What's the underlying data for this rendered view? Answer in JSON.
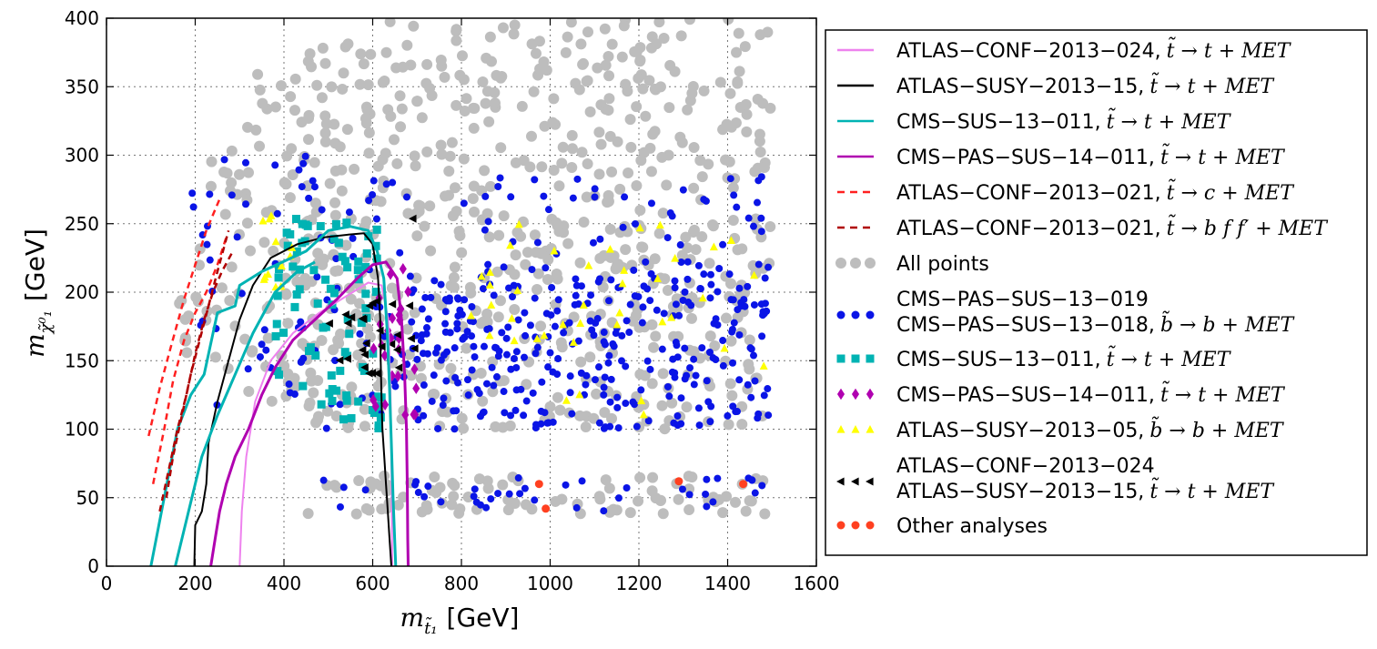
{
  "chart_data": {
    "type": "scatter",
    "title": "",
    "xlabel_sym": "m",
    "xlabel_sub": "t̃₁",
    "xlabel_unit": "[GeV]",
    "ylabel_sym": "m",
    "ylabel_sub": "χ̃⁰₁",
    "ylabel_unit": "[GeV]",
    "xlim": [
      0,
      1600
    ],
    "ylim": [
      0,
      400
    ],
    "xticks": [
      0,
      200,
      400,
      600,
      800,
      1000,
      1200,
      1400,
      1600
    ],
    "yticks": [
      0,
      50,
      100,
      150,
      200,
      250,
      300,
      350,
      400
    ],
    "grid": true,
    "legend_position": "right",
    "legend": [
      {
        "label": "ATLAS−CONF−2013−024,",
        "math": "t̃ → t + MET",
        "kind": "line",
        "color": "#ee82ee",
        "dash": "none"
      },
      {
        "label": "ATLAS−SUSY−2013−15,",
        "math": "t̃ → t + MET",
        "kind": "line",
        "color": "#000000",
        "dash": "none"
      },
      {
        "label": "CMS−SUS−13−011,",
        "math": "t̃ → t + MET",
        "kind": "line",
        "color": "#00b3b3",
        "dash": "none"
      },
      {
        "label": "CMS−PAS−SUS−14−011,",
        "math": "t̃ → t + MET",
        "kind": "line",
        "color": "#b000b0",
        "dash": "none"
      },
      {
        "label": "ATLAS−CONF−2013−021,",
        "math": "t̃ → c + MET",
        "kind": "line",
        "color": "#ff2020",
        "dash": "dashed"
      },
      {
        "label": "ATLAS−CONF−2013−021,",
        "math": "t̃ → b f f′ + MET",
        "kind": "line",
        "color": "#b00000",
        "dash": "dashed"
      },
      {
        "label": "All points",
        "math": "",
        "kind": "circle",
        "color": "#bdbdbd"
      },
      {
        "label": "CMS−PAS−SUS−13−019",
        "label2": "CMS−PAS−SUS−13−018,",
        "math": "b̃ → b + MET",
        "kind": "circle",
        "color": "#0a14e6"
      },
      {
        "label": "CMS−SUS−13−011,",
        "math": "t̃ → t + MET",
        "kind": "square",
        "color": "#00b3b3"
      },
      {
        "label": "CMS−PAS−SUS−14−011,",
        "math": "t̃ → t + MET",
        "kind": "diamond",
        "color": "#b000b0"
      },
      {
        "label": "ATLAS−SUSY−2013−05,",
        "math": "b̃ → b + MET",
        "kind": "triangle",
        "color": "#ffff00"
      },
      {
        "label": "ATLAS−CONF−2013−024",
        "label2": "ATLAS−SUSY−2013−15,",
        "math": "t̃ → t + MET",
        "kind": "lefttriangle",
        "color": "#000000"
      },
      {
        "label": "Other analyses",
        "math": "",
        "kind": "circle",
        "color": "#ff4020"
      }
    ],
    "series": [
      {
        "name": "ATLAS-CONF-2013-024 contour",
        "style": "line",
        "color": "#ee82ee",
        "width": 2,
        "points": [
          [
            300,
            0
          ],
          [
            305,
            40
          ],
          [
            315,
            80
          ],
          [
            335,
            120
          ],
          [
            370,
            150
          ],
          [
            420,
            170
          ],
          [
            480,
            185
          ],
          [
            540,
            197
          ],
          [
            590,
            207
          ],
          [
            620,
            205
          ],
          [
            635,
            180
          ],
          [
            640,
            130
          ],
          [
            642,
            80
          ],
          [
            643,
            40
          ],
          [
            644,
            0
          ]
        ]
      },
      {
        "name": "ATLAS-SUSY-2013-15 contour",
        "style": "line",
        "color": "#000000",
        "width": 2,
        "points": [
          [
            198,
            0
          ],
          [
            200,
            30
          ],
          [
            215,
            40
          ],
          [
            225,
            60
          ],
          [
            230,
            90
          ],
          [
            250,
            120
          ],
          [
            275,
            150
          ],
          [
            300,
            180
          ],
          [
            330,
            205
          ],
          [
            370,
            225
          ],
          [
            430,
            235
          ],
          [
            490,
            240
          ],
          [
            545,
            242
          ],
          [
            580,
            243
          ],
          [
            600,
            235
          ],
          [
            612,
            210
          ],
          [
            617,
            180
          ],
          [
            618,
            150
          ],
          [
            620,
            120
          ],
          [
            622,
            100
          ],
          [
            626,
            80
          ],
          [
            630,
            60
          ],
          [
            634,
            40
          ],
          [
            638,
            20
          ],
          [
            642,
            0
          ]
        ]
      },
      {
        "name": "CMS-SUS-13-011 outer contour",
        "style": "line",
        "color": "#00b3b3",
        "width": 3,
        "points": [
          [
            100,
            0
          ],
          [
            130,
            50
          ],
          [
            160,
            100
          ],
          [
            190,
            125
          ],
          [
            220,
            140
          ],
          [
            250,
            185
          ],
          [
            290,
            190
          ],
          [
            300,
            205
          ],
          [
            350,
            215
          ],
          [
            450,
            230
          ],
          [
            500,
            245
          ],
          [
            550,
            248
          ],
          [
            590,
            245
          ],
          [
            610,
            230
          ],
          [
            625,
            210
          ],
          [
            633,
            170
          ],
          [
            638,
            130
          ],
          [
            642,
            90
          ],
          [
            646,
            50
          ],
          [
            652,
            0
          ]
        ]
      },
      {
        "name": "CMS-SUS-13-011 inner contour",
        "style": "line",
        "color": "#00b3b3",
        "width": 3,
        "points": [
          [
            155,
            0
          ],
          [
            185,
            40
          ],
          [
            215,
            80
          ],
          [
            250,
            110
          ],
          [
            290,
            140
          ],
          [
            330,
            170
          ],
          [
            380,
            200
          ],
          [
            430,
            215
          ],
          [
            470,
            222
          ]
        ]
      },
      {
        "name": "CMS-PAS-SUS-14-011 contour",
        "style": "line",
        "color": "#b000b0",
        "width": 3,
        "points": [
          [
            235,
            0
          ],
          [
            245,
            20
          ],
          [
            255,
            40
          ],
          [
            270,
            60
          ],
          [
            290,
            80
          ],
          [
            320,
            100
          ],
          [
            350,
            125
          ],
          [
            380,
            145
          ],
          [
            420,
            165
          ],
          [
            470,
            180
          ],
          [
            520,
            195
          ],
          [
            565,
            210
          ],
          [
            600,
            220
          ],
          [
            630,
            222
          ],
          [
            655,
            210
          ],
          [
            665,
            180
          ],
          [
            672,
            140
          ],
          [
            676,
            100
          ],
          [
            678,
            60
          ],
          [
            679,
            20
          ],
          [
            680,
            0
          ]
        ]
      },
      {
        "name": "ATLAS-CONF-2013-021 c+MET (1)",
        "style": "dashed",
        "color": "#ff2020",
        "width": 2.5,
        "points": [
          [
            95,
            95
          ],
          [
            120,
            130
          ],
          [
            145,
            160
          ],
          [
            175,
            195
          ],
          [
            200,
            220
          ],
          [
            225,
            245
          ],
          [
            255,
            268
          ]
        ]
      },
      {
        "name": "ATLAS-CONF-2013-021 c+MET (2)",
        "style": "dashed",
        "color": "#ff2020",
        "width": 2.5,
        "points": [
          [
            105,
            60
          ],
          [
            130,
            100
          ],
          [
            150,
            135
          ],
          [
            175,
            165
          ],
          [
            200,
            185
          ],
          [
            225,
            200
          ],
          [
            250,
            220
          ],
          [
            270,
            240
          ]
        ]
      },
      {
        "name": "ATLAS-CONF-2013-021 bff'+MET (1)",
        "style": "dashed",
        "color": "#b00000",
        "width": 2.5,
        "points": [
          [
            120,
            40
          ],
          [
            140,
            70
          ],
          [
            160,
            100
          ],
          [
            180,
            125
          ],
          [
            200,
            155
          ],
          [
            220,
            180
          ],
          [
            240,
            200
          ],
          [
            260,
            215
          ],
          [
            285,
            230
          ]
        ]
      },
      {
        "name": "ATLAS-CONF-2013-021 bff'+MET (2)",
        "style": "dashed",
        "color": "#b00000",
        "width": 2.5,
        "points": [
          [
            135,
            50
          ],
          [
            150,
            80
          ],
          [
            170,
            110
          ],
          [
            190,
            140
          ],
          [
            210,
            165
          ],
          [
            230,
            190
          ],
          [
            250,
            215
          ],
          [
            275,
            245
          ]
        ]
      }
    ],
    "scatter_regions": [
      {
        "name": "All points",
        "color": "#bdbdbd",
        "marker": "circle",
        "boxes": [
          [
            600,
            1500,
            100,
            400,
            520
          ],
          [
            450,
            600,
            100,
            390,
            120
          ],
          [
            300,
            450,
            120,
            360,
            60
          ],
          [
            200,
            300,
            140,
            320,
            25
          ],
          [
            150,
            200,
            140,
            200,
            8
          ],
          [
            450,
            1500,
            38,
            66,
            90
          ]
        ]
      },
      {
        "name": "CMS-PAS-SUS-13-019/018",
        "color": "#0a14e6",
        "marker": "circle",
        "boxes": [
          [
            700,
            1500,
            100,
            210,
            300
          ],
          [
            800,
            1500,
            210,
            285,
            60
          ],
          [
            180,
            700,
            100,
            300,
            90
          ],
          [
            450,
            1500,
            40,
            65,
            40
          ]
        ]
      },
      {
        "name": "CMS-SUS-13-011",
        "color": "#00b3b3",
        "marker": "square",
        "boxes": [
          [
            380,
            620,
            100,
            255,
            85
          ]
        ]
      },
      {
        "name": "CMS-PAS-SUS-14-011",
        "color": "#b000b0",
        "marker": "diamond",
        "boxes": [
          [
            600,
            700,
            110,
            225,
            28
          ]
        ]
      },
      {
        "name": "ATLAS-SUSY-2013-05",
        "color": "#ffff00",
        "marker": "triangle",
        "boxes": [
          [
            800,
            1500,
            110,
            250,
            40
          ],
          [
            340,
            420,
            200,
            270,
            12
          ]
        ]
      },
      {
        "name": "ATLAS-CONF-2013-024 / SUSY-2013-15",
        "color": "#000000",
        "marker": "lefttriangle",
        "boxes": [
          [
            480,
            700,
            140,
            195,
            28
          ],
          [
            680,
            700,
            250,
            255,
            1
          ]
        ]
      },
      {
        "name": "Other analyses",
        "color": "#ff4020",
        "marker": "circle",
        "points": [
          [
            975,
            60
          ],
          [
            990,
            42
          ],
          [
            1290,
            62
          ],
          [
            1435,
            60
          ]
        ]
      }
    ]
  }
}
